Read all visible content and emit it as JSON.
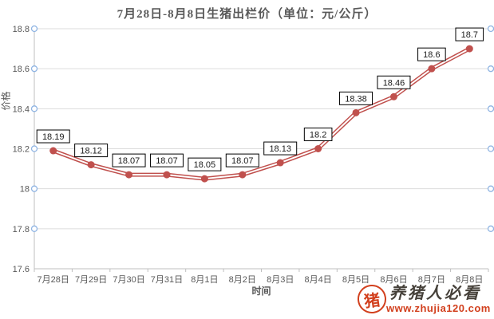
{
  "chart_data": {
    "type": "line",
    "title": "7月28日-8月8日生猪出栏价（单位：元/公斤）",
    "xlabel": "时间",
    "ylabel": "价格",
    "categories": [
      "7月28日",
      "7月29日",
      "7月30日",
      "7月31日",
      "8月1日",
      "8月2日",
      "8月3日",
      "8月4日",
      "8月5日",
      "8月6日",
      "8月7日",
      "8月8日"
    ],
    "values": [
      18.19,
      18.12,
      18.07,
      18.07,
      18.05,
      18.07,
      18.13,
      18.2,
      18.38,
      18.46,
      18.6,
      18.7
    ],
    "data_labels": [
      "18.19",
      "18.12",
      "18.07",
      "18.07",
      "18.05",
      "18.07",
      "18.13",
      "18.2",
      "18.38",
      "18.46",
      "18.6",
      "18.7"
    ],
    "ylim": [
      17.6,
      18.8
    ],
    "yticks": [
      "18.8",
      "18.6",
      "18.4",
      "18.2",
      "18",
      "17.8",
      "17.6"
    ],
    "grid": true,
    "legend": "none",
    "colors": {
      "series": "#c0504d",
      "marker": "#c0504d",
      "grid": "#dcdcdc",
      "axis": "#bfbfbf",
      "tick_circle": "#8fb4e3",
      "text": "#595959",
      "label_text": "#1a1a1a",
      "label_border": "#000000",
      "label_fill": "#ffffff"
    }
  },
  "watermark": {
    "seal_char": "猪",
    "text": "养猪人必看",
    "url": "www.zhujia120.com"
  }
}
